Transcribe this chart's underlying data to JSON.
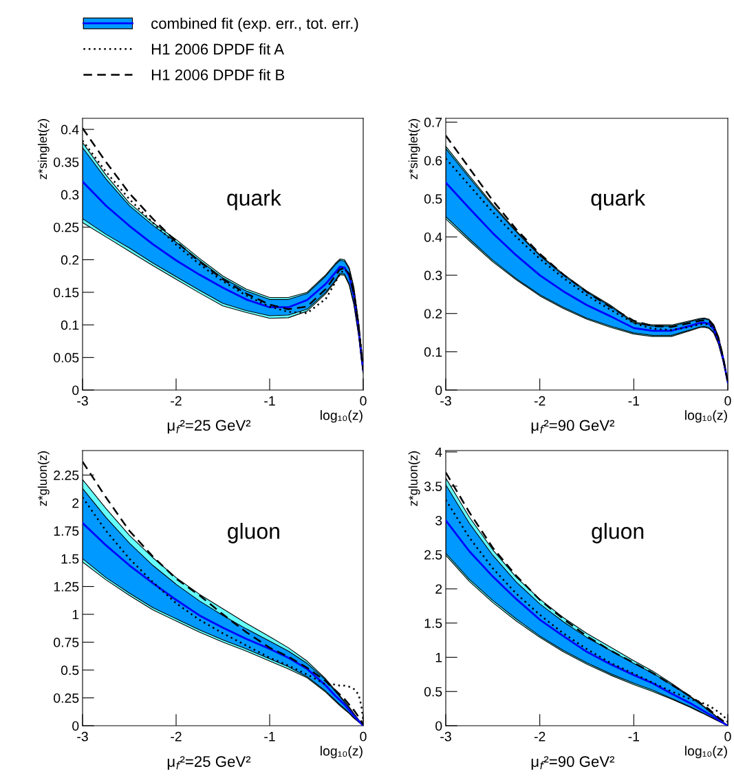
{
  "chart_data": [
    {
      "type": "line",
      "legend": "top left",
      "ylabel": "z*singlet(z)",
      "xlabel": "log₁₀(z)",
      "annotations": [
        "quark",
        "μ$_{f}$²=25 GeV²"
      ],
      "xlim": [
        -3,
        0
      ],
      "xticks": [
        -3,
        -2,
        -1,
        0
      ],
      "ylim": [
        0,
        0.417
      ],
      "yticks": [
        0,
        0.05,
        0.1,
        0.15,
        0.2,
        0.25,
        0.3,
        0.35,
        0.4
      ],
      "x": [
        -3,
        -2.75,
        -2.5,
        -2.25,
        -2,
        -1.75,
        -1.5,
        -1.25,
        -1,
        -0.8,
        -0.6,
        -0.4,
        -0.3,
        -0.25,
        -0.2,
        -0.15,
        -0.1,
        -0.05,
        -0.02,
        0
      ],
      "series": [
        {
          "color": "#66ffff",
          "values": [
            null,
            null,
            null,
            null,
            null,
            null,
            null,
            null,
            null,
            null,
            null,
            null,
            null,
            null,
            null,
            null,
            null,
            null,
            null,
            null
          ],
          "upper": [
            0.38,
            0.33,
            0.287,
            0.257,
            0.231,
            0.202,
            0.175,
            0.155,
            0.142,
            0.142,
            0.15,
            0.177,
            0.194,
            0.201,
            0.2,
            0.188,
            0.158,
            0.105,
            0.063,
            0.035
          ],
          "lower": [
            0.257,
            0.235,
            0.213,
            0.191,
            0.17,
            0.149,
            0.129,
            0.119,
            0.11,
            0.111,
            0.121,
            0.148,
            0.166,
            0.177,
            0.176,
            0.161,
            0.131,
            0.084,
            0.046,
            0.026
          ]
        },
        {
          "color": "#0099ff",
          "values": [
            null,
            null,
            null,
            null,
            null,
            null,
            null,
            null,
            null,
            null,
            null,
            null,
            null,
            null,
            null,
            null,
            null,
            null,
            null,
            null
          ],
          "upper": [
            0.372,
            0.324,
            0.283,
            0.253,
            0.227,
            0.199,
            0.172,
            0.152,
            0.139,
            0.139,
            0.148,
            0.175,
            0.192,
            0.199,
            0.198,
            0.186,
            0.156,
            0.103,
            0.061,
            0.034
          ],
          "lower": [
            0.263,
            0.239,
            0.218,
            0.195,
            0.174,
            0.153,
            0.133,
            0.122,
            0.114,
            0.115,
            0.124,
            0.15,
            0.168,
            0.179,
            0.178,
            0.163,
            0.133,
            0.086,
            0.048,
            0.027
          ]
        },
        {
          "name": "combined fit (exp. err., tot. err.)",
          "color": "#0000ff",
          "line_style": "solid",
          "values": [
            0.32,
            0.283,
            0.252,
            0.224,
            0.199,
            0.177,
            0.157,
            0.139,
            0.127,
            0.127,
            0.138,
            0.163,
            0.18,
            0.189,
            0.188,
            0.175,
            0.145,
            0.095,
            0.055,
            0.03
          ]
        },
        {
          "name": "H1 2006 DPDF fit A",
          "color": "#000000",
          "line_style": "dotted",
          "values": [
            0.383,
            0.335,
            0.293,
            0.257,
            0.223,
            0.193,
            0.167,
            0.145,
            0.128,
            0.12,
            0.118,
            0.14,
            0.165,
            0.178,
            0.185,
            0.18,
            0.15,
            0.1,
            0.06,
            0.03
          ]
        },
        {
          "name": "H1 2006 DPDF fit B",
          "color": "#000000",
          "line_style": "dashed",
          "values": [
            0.402,
            0.35,
            0.302,
            0.263,
            0.228,
            0.197,
            0.17,
            0.148,
            0.131,
            0.124,
            0.128,
            0.155,
            0.175,
            0.185,
            0.187,
            0.178,
            0.148,
            0.098,
            0.058,
            0.03
          ]
        }
      ]
    },
    {
      "type": "line",
      "ylabel": "z*singlet(z)",
      "xlabel": "log₁₀(z)",
      "annotations": [
        "quark",
        "μ$_{f}$²=90 GeV²"
      ],
      "xlim": [
        -3,
        0
      ],
      "xticks": [
        -3,
        -2,
        -1,
        0
      ],
      "ylim": [
        0,
        0.71
      ],
      "yticks": [
        0,
        0.1,
        0.2,
        0.3,
        0.4,
        0.5,
        0.6,
        0.7
      ],
      "x": [
        -3,
        -2.75,
        -2.5,
        -2.25,
        -2,
        -1.75,
        -1.5,
        -1.25,
        -1,
        -0.8,
        -0.6,
        -0.4,
        -0.3,
        -0.25,
        -0.2,
        -0.15,
        -0.1,
        -0.05,
        -0.02,
        0
      ],
      "series": [
        {
          "color": "#66ffff",
          "values": [
            null,
            null,
            null,
            null,
            null,
            null,
            null,
            null,
            null,
            null,
            null,
            null,
            null,
            null,
            null,
            null,
            null,
            null,
            null,
            null
          ],
          "upper": [
            0.637,
            0.56,
            0.485,
            0.416,
            0.354,
            0.303,
            0.259,
            0.222,
            0.178,
            0.17,
            0.17,
            0.181,
            0.187,
            0.188,
            0.185,
            0.171,
            0.14,
            0.089,
            0.049,
            0.022
          ],
          "lower": [
            0.447,
            0.39,
            0.335,
            0.288,
            0.246,
            0.213,
            0.185,
            0.164,
            0.146,
            0.14,
            0.14,
            0.155,
            0.163,
            0.164,
            0.161,
            0.149,
            0.12,
            0.075,
            0.041,
            0.018
          ]
        },
        {
          "color": "#0099ff",
          "values": [
            null,
            null,
            null,
            null,
            null,
            null,
            null,
            null,
            null,
            null,
            null,
            null,
            null,
            null,
            null,
            null,
            null,
            null,
            null,
            null
          ],
          "upper": [
            0.631,
            0.555,
            0.481,
            0.413,
            0.351,
            0.3,
            0.256,
            0.219,
            0.175,
            0.167,
            0.167,
            0.179,
            0.185,
            0.186,
            0.183,
            0.169,
            0.138,
            0.088,
            0.048,
            0.021
          ],
          "lower": [
            0.453,
            0.395,
            0.339,
            0.291,
            0.249,
            0.216,
            0.188,
            0.167,
            0.149,
            0.143,
            0.143,
            0.157,
            0.165,
            0.166,
            0.163,
            0.151,
            0.122,
            0.076,
            0.042,
            0.019
          ]
        },
        {
          "color": "#0000ff",
          "line_style": "solid",
          "values": [
            0.542,
            0.475,
            0.41,
            0.352,
            0.3,
            0.258,
            0.222,
            0.193,
            0.162,
            0.155,
            0.155,
            0.168,
            0.175,
            0.176,
            0.173,
            0.16,
            0.13,
            0.082,
            0.045,
            0.02
          ]
        },
        {
          "color": "#000000",
          "line_style": "dotted",
          "values": [
            0.605,
            0.535,
            0.465,
            0.4,
            0.343,
            0.293,
            0.248,
            0.21,
            0.175,
            0.16,
            0.157,
            0.165,
            0.172,
            0.172,
            0.172,
            0.16,
            0.13,
            0.082,
            0.045,
            0.02
          ]
        },
        {
          "color": "#000000",
          "line_style": "dashed",
          "values": [
            0.665,
            0.58,
            0.495,
            0.42,
            0.356,
            0.302,
            0.256,
            0.217,
            0.181,
            0.167,
            0.165,
            0.175,
            0.181,
            0.182,
            0.18,
            0.167,
            0.137,
            0.086,
            0.047,
            0.021
          ]
        }
      ]
    },
    {
      "type": "line",
      "ylabel": "z*gluon(z)",
      "xlabel": "log₁₀(z)",
      "annotations": [
        "gluon",
        "μ$_{f}$²=25 GeV²"
      ],
      "xlim": [
        -3,
        0
      ],
      "xticks": [
        -3,
        -2,
        -1,
        0
      ],
      "ylim": [
        0,
        2.47
      ],
      "yticks": [
        0,
        0.25,
        0.5,
        0.75,
        1,
        1.25,
        1.5,
        1.75,
        2,
        2.25
      ],
      "x": [
        -3,
        -2.75,
        -2.5,
        -2.25,
        -2,
        -1.75,
        -1.5,
        -1.25,
        -1,
        -0.8,
        -0.6,
        -0.4,
        -0.3,
        -0.25,
        -0.2,
        -0.15,
        -0.1,
        -0.05,
        -0.02,
        0
      ],
      "series": [
        {
          "color": "#66ffff",
          "values": [
            null,
            null,
            null,
            null,
            null,
            null,
            null,
            null,
            null,
            null,
            null,
            null,
            null,
            null,
            null,
            null,
            null,
            null,
            null,
            null
          ],
          "upper": [
            2.21,
            1.95,
            1.71,
            1.51,
            1.33,
            1.18,
            1.05,
            0.92,
            0.8,
            0.7,
            0.58,
            0.42,
            0.32,
            0.27,
            0.22,
            0.17,
            0.11,
            0.055,
            0.022,
            0
          ],
          "lower": [
            1.47,
            1.31,
            1.17,
            1.04,
            0.94,
            0.84,
            0.75,
            0.67,
            0.58,
            0.51,
            0.43,
            0.3,
            0.22,
            0.18,
            0.145,
            0.11,
            0.068,
            0.034,
            0.013,
            0
          ]
        },
        {
          "color": "#0099ff",
          "values": [
            null,
            null,
            null,
            null,
            null,
            null,
            null,
            null,
            null,
            null,
            null,
            null,
            null,
            null,
            null,
            null,
            null,
            null,
            null,
            null
          ],
          "upper": [
            2.13,
            1.87,
            1.64,
            1.44,
            1.27,
            1.12,
            0.99,
            0.87,
            0.76,
            0.67,
            0.56,
            0.41,
            0.31,
            0.26,
            0.21,
            0.16,
            0.105,
            0.052,
            0.02,
            0
          ],
          "lower": [
            1.5,
            1.33,
            1.19,
            1.06,
            0.96,
            0.86,
            0.77,
            0.69,
            0.6,
            0.53,
            0.44,
            0.31,
            0.23,
            0.19,
            0.155,
            0.115,
            0.072,
            0.036,
            0.014,
            0
          ]
        },
        {
          "color": "#0000ff",
          "line_style": "solid",
          "values": [
            1.82,
            1.62,
            1.44,
            1.28,
            1.13,
            0.99,
            0.88,
            0.78,
            0.69,
            0.61,
            0.51,
            0.36,
            0.27,
            0.23,
            0.19,
            0.14,
            0.09,
            0.045,
            0.018,
            0
          ]
        },
        {
          "color": "#000000",
          "line_style": "dotted",
          "values": [
            2.05,
            1.75,
            1.5,
            1.29,
            1.1,
            0.95,
            0.83,
            0.72,
            0.61,
            0.54,
            0.46,
            0.37,
            0.37,
            0.36,
            0.36,
            0.35,
            0.33,
            0.28,
            0.18,
            0.05
          ]
        },
        {
          "color": "#000000",
          "line_style": "dashed",
          "values": [
            2.37,
            2.05,
            1.75,
            1.52,
            1.32,
            1.17,
            1.0,
            0.84,
            0.7,
            0.62,
            0.52,
            0.4,
            0.32,
            0.28,
            0.24,
            0.19,
            0.14,
            0.08,
            0.04,
            0.01
          ]
        }
      ]
    },
    {
      "type": "line",
      "ylabel": "z*gluon(z)",
      "xlabel": "log₁₀(z)",
      "annotations": [
        "gluon",
        "μ$_{f}$²=90 GeV²"
      ],
      "xlim": [
        -3,
        0
      ],
      "xticks": [
        -3,
        -2,
        -1,
        0
      ],
      "ylim": [
        0,
        4.02
      ],
      "yticks": [
        0,
        0.5,
        1,
        1.5,
        2,
        2.5,
        3,
        3.5,
        4
      ],
      "x": [
        -3,
        -2.75,
        -2.5,
        -2.25,
        -2,
        -1.75,
        -1.5,
        -1.25,
        -1,
        -0.8,
        -0.6,
        -0.4,
        -0.3,
        -0.25,
        -0.2,
        -0.15,
        -0.1,
        -0.05,
        -0.02,
        0
      ],
      "series": [
        {
          "color": "#66ffff",
          "values": [
            null,
            null,
            null,
            null,
            null,
            null,
            null,
            null,
            null,
            null,
            null,
            null,
            null,
            null,
            null,
            null,
            null,
            null,
            null,
            null
          ],
          "upper": [
            3.62,
            3.05,
            2.57,
            2.17,
            1.85,
            1.58,
            1.35,
            1.15,
            0.95,
            0.8,
            0.62,
            0.43,
            0.33,
            0.28,
            0.22,
            0.17,
            0.11,
            0.055,
            0.022,
            0
          ],
          "lower": [
            2.49,
            2.11,
            1.8,
            1.53,
            1.29,
            1.08,
            0.9,
            0.74,
            0.6,
            0.5,
            0.39,
            0.27,
            0.2,
            0.17,
            0.135,
            0.1,
            0.065,
            0.032,
            0.012,
            0
          ]
        },
        {
          "color": "#0099ff",
          "values": [
            null,
            null,
            null,
            null,
            null,
            null,
            null,
            null,
            null,
            null,
            null,
            null,
            null,
            null,
            null,
            null,
            null,
            null,
            null,
            null
          ],
          "upper": [
            3.52,
            2.96,
            2.49,
            2.1,
            1.78,
            1.52,
            1.29,
            1.1,
            0.91,
            0.77,
            0.6,
            0.42,
            0.32,
            0.27,
            0.21,
            0.165,
            0.105,
            0.052,
            0.02,
            0
          ],
          "lower": [
            2.52,
            2.14,
            1.83,
            1.56,
            1.31,
            1.1,
            0.92,
            0.76,
            0.62,
            0.52,
            0.4,
            0.28,
            0.21,
            0.175,
            0.14,
            0.105,
            0.07,
            0.034,
            0.013,
            0
          ]
        },
        {
          "color": "#0000ff",
          "line_style": "solid",
          "values": [
            3.0,
            2.55,
            2.18,
            1.85,
            1.55,
            1.31,
            1.08,
            0.9,
            0.74,
            0.62,
            0.47,
            0.33,
            0.25,
            0.21,
            0.17,
            0.13,
            0.085,
            0.042,
            0.016,
            0
          ]
        },
        {
          "color": "#000000",
          "line_style": "dotted",
          "values": [
            3.3,
            2.75,
            2.3,
            1.93,
            1.62,
            1.35,
            1.12,
            0.92,
            0.76,
            0.63,
            0.5,
            0.39,
            0.35,
            0.32,
            0.29,
            0.25,
            0.2,
            0.15,
            0.1,
            0.05
          ]
        },
        {
          "color": "#000000",
          "line_style": "dashed",
          "values": [
            3.7,
            3.12,
            2.6,
            2.19,
            1.84,
            1.56,
            1.31,
            1.1,
            0.92,
            0.77,
            0.6,
            0.43,
            0.34,
            0.29,
            0.24,
            0.18,
            0.12,
            0.07,
            0.03,
            0.01
          ]
        }
      ]
    }
  ]
}
